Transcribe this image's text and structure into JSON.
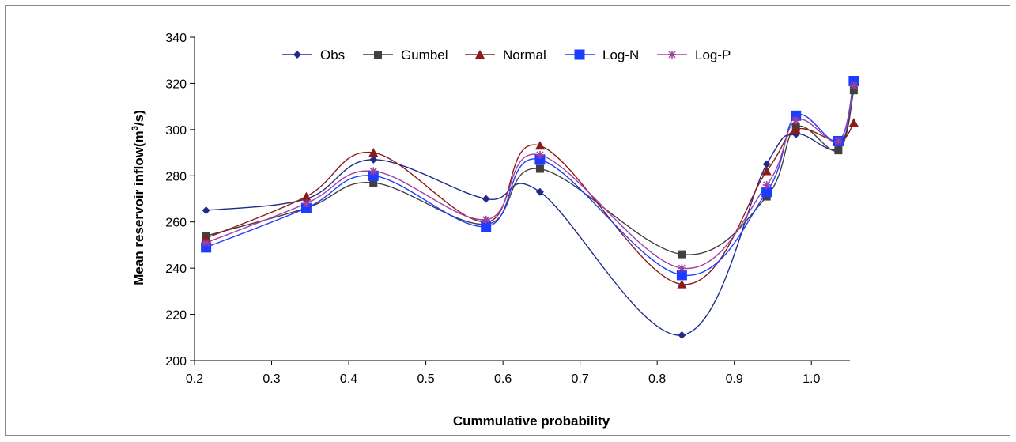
{
  "chart_data": {
    "type": "line",
    "xlabel": "Cummulative probability",
    "ylabel": "Mean reservoir inflow(m",
    "ylabel_sup": "3",
    "ylabel_suffix": "/s)",
    "xlim": [
      0.2,
      1.05
    ],
    "ylim": [
      200,
      340
    ],
    "xticks": [
      0.2,
      0.3,
      0.4,
      0.5,
      0.6,
      0.7,
      0.8,
      0.9,
      1.0
    ],
    "xtick_labels": [
      "0.2",
      "0.3",
      "0.4",
      "0.5",
      "0.6",
      "0.7",
      "0.8",
      "0.9",
      "1.0"
    ],
    "yticks": [
      200,
      220,
      240,
      260,
      280,
      300,
      320,
      340
    ],
    "ytick_labels": [
      "200",
      "220",
      "240",
      "260",
      "280",
      "300",
      "320",
      "340"
    ],
    "grid": false,
    "legend_position": "top",
    "x": [
      0.215,
      0.345,
      0.432,
      0.578,
      0.648,
      0.832,
      0.942,
      0.98,
      1.035,
      1.055
    ],
    "series": [
      {
        "name": "Obs",
        "color": "#1f2a8a",
        "marker": "diamond",
        "values": [
          265,
          270,
          287,
          270,
          273,
          211,
          285,
          298,
          292,
          318
        ]
      },
      {
        "name": "Gumbel",
        "color": "#404040",
        "marker": "square",
        "values": [
          254,
          266,
          277,
          259,
          283,
          246,
          271,
          301,
          291,
          317
        ]
      },
      {
        "name": "Normal",
        "color": "#8b1a1a",
        "marker": "triangle",
        "values": [
          253,
          271,
          290,
          260,
          293,
          233,
          282,
          300,
          295,
          303
        ]
      },
      {
        "name": "Log-N",
        "color": "#1e3cff",
        "marker": "bigsquare",
        "values": [
          249,
          266,
          280,
          258,
          287,
          237,
          273,
          306,
          295,
          321
        ]
      },
      {
        "name": "Log-P",
        "color": "#a040a0",
        "marker": "star",
        "values": [
          251,
          268,
          282,
          261,
          289,
          240,
          276,
          304,
          295,
          319
        ]
      }
    ]
  }
}
